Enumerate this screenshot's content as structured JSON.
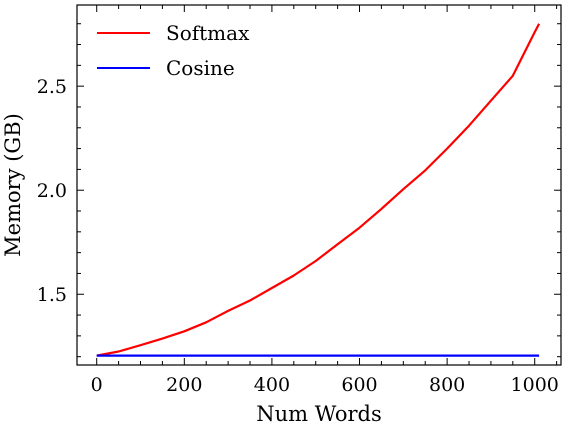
{
  "chart_data": {
    "type": "line",
    "xlabel": "Num Words",
    "ylabel": "Memory (GB)",
    "xlim": [
      -45,
      1060
    ],
    "ylim": [
      1.16,
      2.89
    ],
    "x_ticks": [
      0,
      200,
      400,
      600,
      800,
      1000
    ],
    "x_tick_labels": [
      "0",
      "200",
      "400",
      "600",
      "800",
      "1000"
    ],
    "y_ticks": [
      1.5,
      2.0,
      2.5
    ],
    "y_tick_labels": [
      "1.5",
      "2.0",
      "2.5"
    ],
    "grid": false,
    "legend": {
      "placement": "top-left"
    },
    "series": [
      {
        "name": "Softmax",
        "color": "#ff0000",
        "x": [
          0,
          50,
          100,
          150,
          200,
          250,
          300,
          350,
          400,
          450,
          500,
          550,
          600,
          650,
          700,
          750,
          800,
          850,
          900,
          950,
          1000,
          1010
        ],
        "y": [
          1.205,
          1.225,
          1.255,
          1.287,
          1.322,
          1.365,
          1.42,
          1.47,
          1.53,
          1.59,
          1.66,
          1.74,
          1.82,
          1.91,
          2.005,
          2.095,
          2.2,
          2.31,
          2.43,
          2.55,
          2.76,
          2.8
        ]
      },
      {
        "name": "Cosine",
        "color": "#0000ff",
        "x": [
          0,
          1010
        ],
        "y": [
          1.205,
          1.205
        ]
      }
    ]
  }
}
